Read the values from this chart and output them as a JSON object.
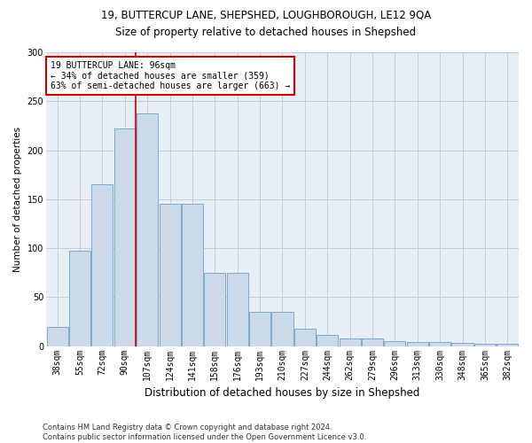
{
  "title1": "19, BUTTERCUP LANE, SHEPSHED, LOUGHBOROUGH, LE12 9QA",
  "title2": "Size of property relative to detached houses in Shepshed",
  "xlabel": "Distribution of detached houses by size in Shepshed",
  "ylabel": "Number of detached properties",
  "bar_labels": [
    "38sqm",
    "55sqm",
    "72sqm",
    "90sqm",
    "107sqm",
    "124sqm",
    "141sqm",
    "158sqm",
    "176sqm",
    "193sqm",
    "210sqm",
    "227sqm",
    "244sqm",
    "262sqm",
    "279sqm",
    "296sqm",
    "313sqm",
    "330sqm",
    "348sqm",
    "365sqm",
    "382sqm"
  ],
  "bar_values": [
    20,
    97,
    165,
    222,
    238,
    145,
    145,
    75,
    75,
    35,
    35,
    18,
    11,
    8,
    8,
    5,
    4,
    4,
    3,
    2,
    2
  ],
  "bar_color": "#ccd9e8",
  "bar_edge_color": "#7baad0",
  "grid_color": "#c0ccd8",
  "background_color": "#e8eef5",
  "red_line_x": 3.5,
  "annotation_text": "19 BUTTERCUP LANE: 96sqm\n← 34% of detached houses are smaller (359)\n63% of semi-detached houses are larger (663) →",
  "annotation_box_color": "#ffffff",
  "annotation_border_color": "#cc0000",
  "footer_text": "Contains HM Land Registry data © Crown copyright and database right 2024.\nContains public sector information licensed under the Open Government Licence v3.0.",
  "ylim": [
    0,
    300
  ],
  "yticks": [
    0,
    50,
    100,
    150,
    200,
    250,
    300
  ],
  "title1_fontsize": 8.5,
  "title2_fontsize": 8.5,
  "xlabel_fontsize": 8.5,
  "ylabel_fontsize": 7.5,
  "tick_fontsize": 7.0,
  "annotation_fontsize": 7.0,
  "footer_fontsize": 6.0
}
